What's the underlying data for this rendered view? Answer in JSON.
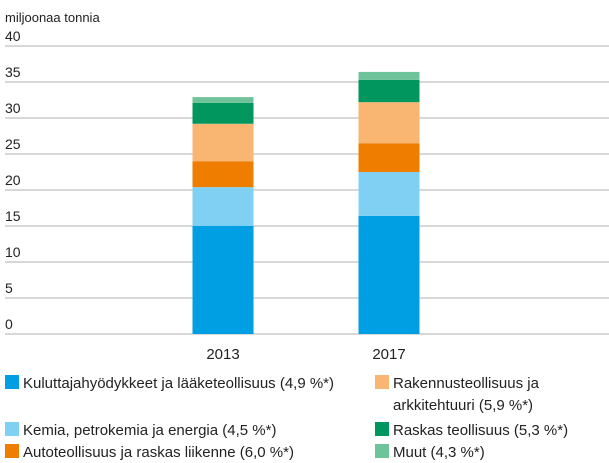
{
  "chart_data": {
    "type": "stacked_bar",
    "ylabel": "miljoonaa tonnia",
    "categories": [
      "2013",
      "2017"
    ],
    "series": [
      {
        "name": "Kuluttajahyödykkeet ja lääketeollisuus (4,9 %*)",
        "color": "#009fe3",
        "values": [
          15,
          16.4
        ]
      },
      {
        "name": "Kemia, petrokemia ja energia (4,5 %*)",
        "color": "#80d0f4",
        "values": [
          5.4,
          6.1
        ]
      },
      {
        "name": "Autoteollisuus ja raskas liikenne (6,0 %*)",
        "color": "#ef7d00",
        "values": [
          3.6,
          4.0
        ]
      },
      {
        "name": "Rakennusteollisuus ja arkkitehtuuri (5,9 %*)",
        "color": "#f8b672",
        "values": [
          5.2,
          5.7
        ]
      },
      {
        "name": "Raskas teollisuus (5,3 %*)",
        "color": "#00965e",
        "values": [
          2.9,
          3.1
        ]
      },
      {
        "name": "Muut (4,3 %*)",
        "color": "#6fc39a",
        "values": [
          0.8,
          1.1
        ]
      }
    ],
    "ylim": [
      0,
      40
    ],
    "yticks": [
      0,
      5,
      10,
      15,
      20,
      25,
      30,
      35,
      40
    ],
    "grid": true
  }
}
